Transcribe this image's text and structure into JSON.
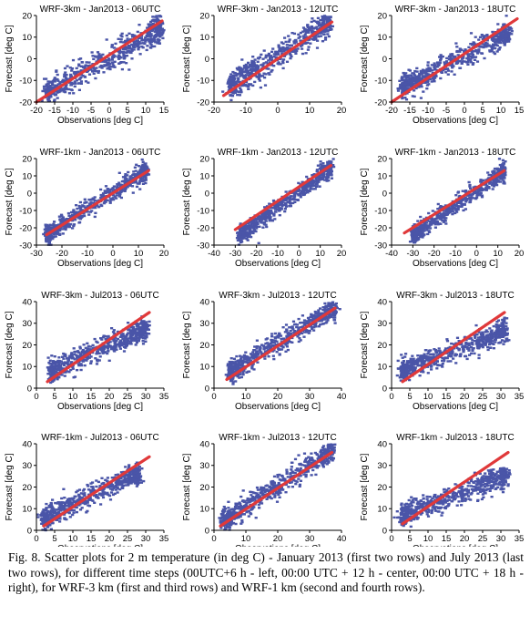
{
  "caption": "Fig. 8. Scatter plots for 2 m temperature (in deg C) - January 2013 (first two rows) and July 2013 (last two rows), for different time steps (00UTC+6 h - left, 00:00 UTC + 12 h - center, 00:00 UTC + 18 h - right), for WRF-3 km (first and third rows) and WRF-1 km (second and fourth rows).",
  "colors": {
    "points": "#4a55a8",
    "fit_line": "#e0393a",
    "axis": "#000000"
  },
  "chart_data": [
    {
      "type": "scatter",
      "title": "WRF-3km - Jan2013 - 06UTC",
      "xlabel": "Observations [deg C]",
      "ylabel": "Forecast [deg C]",
      "xlim": [
        -20,
        15
      ],
      "ylim": [
        -20,
        20
      ],
      "xticks": [
        "-20",
        "-15",
        "-10",
        "-5",
        "0",
        "5",
        "10",
        "15"
      ],
      "yticks": [
        "-20",
        "-10",
        "0",
        "10",
        "20"
      ],
      "cloud": {
        "x_range": [
          -17,
          14
        ],
        "slope": 0.95,
        "intercept": 0.5,
        "spread": 3.0
      },
      "fit_line": {
        "x": [
          -20,
          14.5
        ],
        "y": [
          -20,
          17.5
        ]
      }
    },
    {
      "type": "scatter",
      "title": "WRF-3km - Jan2013 - 12UTC",
      "xlabel": "",
      "ylabel": "Forecast [deg C]",
      "xlim": [
        -20,
        20
      ],
      "ylim": [
        -20,
        20
      ],
      "xticks": [
        "-20",
        "-10",
        "0",
        "10",
        "20"
      ],
      "yticks": [
        "-20",
        "-10",
        "0",
        "10",
        "20"
      ],
      "cloud": {
        "x_range": [
          -15,
          16
        ],
        "slope": 0.95,
        "intercept": 1.5,
        "spread": 3.0
      },
      "fit_line": {
        "x": [
          -17,
          17
        ],
        "y": [
          -17,
          17
        ]
      }
    },
    {
      "type": "scatter",
      "title": "WRF-3km - Jan2013 - 18UTC",
      "xlabel": "Observations [deg C]",
      "ylabel": "Forecast [deg C]",
      "xlim": [
        -20,
        15
      ],
      "ylim": [
        -20,
        20
      ],
      "xticks": [
        "-20",
        "-15",
        "-10",
        "-5",
        "0",
        "5",
        "10",
        "15"
      ],
      "yticks": [
        "-20",
        "-10",
        "0",
        "10",
        "20"
      ],
      "cloud": {
        "x_range": [
          -17,
          12
        ],
        "slope": 0.85,
        "intercept": 1.5,
        "spread": 2.5
      },
      "fit_line": {
        "x": [
          -20,
          14.5
        ],
        "y": [
          -20,
          18.5
        ]
      }
    },
    {
      "type": "scatter",
      "title": "WRF-1km - Jan2013 - 06UTC",
      "xlabel": "Observations [deg C]",
      "ylabel": "Forecast [deg C]",
      "xlim": [
        -30,
        20
      ],
      "ylim": [
        -30,
        20
      ],
      "xticks": [
        "-30",
        "-20",
        "-10",
        "0",
        "10",
        "20"
      ],
      "yticks": [
        "-30",
        "-20",
        "-10",
        "0",
        "10",
        "20"
      ],
      "cloud": {
        "x_range": [
          -26,
          13
        ],
        "slope": 0.95,
        "intercept": 0.5,
        "spread": 2.5
      },
      "fit_line": {
        "x": [
          -26,
          14
        ],
        "y": [
          -24,
          13
        ]
      }
    },
    {
      "type": "scatter",
      "title": "WRF-1km - Jan2013 - 12UTC",
      "xlabel": "Observations [deg C]",
      "ylabel": "Forecast [deg C]",
      "xlim": [
        -40,
        20
      ],
      "ylim": [
        -30,
        20
      ],
      "xticks": [
        "-40",
        "-30",
        "-20",
        "-10",
        "0",
        "10",
        "20"
      ],
      "yticks": [
        "-30",
        "-20",
        "-10",
        "0",
        "10",
        "20"
      ],
      "cloud": {
        "x_range": [
          -28,
          15
        ],
        "slope": 0.92,
        "intercept": 1.0,
        "spread": 2.5
      },
      "fit_line": {
        "x": [
          -30,
          15
        ],
        "y": [
          -21,
          16
        ]
      }
    },
    {
      "type": "scatter",
      "title": "WRF-1km - Jan2013 - 18UTC",
      "xlabel": "Observations [deg C]",
      "ylabel": "Forecast [deg C]",
      "xlim": [
        -40,
        20
      ],
      "ylim": [
        -30,
        20
      ],
      "xticks": [
        "-40",
        "-30",
        "-20",
        "-10",
        "0",
        "10",
        "20"
      ],
      "yticks": [
        "-30",
        "-20",
        "-10",
        "0",
        "10",
        "20"
      ],
      "cloud": {
        "x_range": [
          -30,
          13
        ],
        "slope": 0.85,
        "intercept": 1.5,
        "spread": 2.5
      },
      "fit_line": {
        "x": [
          -34,
          13
        ],
        "y": [
          -23,
          13
        ]
      }
    },
    {
      "type": "scatter",
      "title": "WRF-3km - Jul2013 - 06UTC",
      "xlabel": "Observations [deg C]",
      "ylabel": "Forecast [deg C]",
      "xlim": [
        0,
        35
      ],
      "ylim": [
        0,
        40
      ],
      "xticks": [
        "0",
        "5",
        "10",
        "15",
        "20",
        "25",
        "30",
        "35"
      ],
      "yticks": [
        "0",
        "10",
        "20",
        "30",
        "40"
      ],
      "cloud": {
        "x_range": [
          4,
          30
        ],
        "slope": 0.75,
        "intercept": 5.0,
        "spread": 2.5
      },
      "fit_line": {
        "x": [
          3,
          31
        ],
        "y": [
          3,
          35
        ]
      }
    },
    {
      "type": "scatter",
      "title": "WRF-3km - Jul2013 - 12UTC",
      "xlabel": "Observations [deg C]",
      "ylabel": "Forecast [deg C]",
      "xlim": [
        0,
        40
      ],
      "ylim": [
        0,
        40
      ],
      "xticks": [
        "0",
        "10",
        "20",
        "30",
        "40"
      ],
      "yticks": [
        "0",
        "10",
        "20",
        "30",
        "40"
      ],
      "cloud": {
        "x_range": [
          5,
          38
        ],
        "slope": 0.9,
        "intercept": 3.0,
        "spread": 2.5
      },
      "fit_line": {
        "x": [
          4,
          38
        ],
        "y": [
          4,
          37
        ]
      }
    },
    {
      "type": "scatter",
      "title": "WRF-3km - Jul2013 - 18UTC",
      "xlabel": "Observations [deg C]",
      "ylabel": "Forecast [deg C]",
      "xlim": [
        0,
        35
      ],
      "ylim": [
        0,
        40
      ],
      "xticks": [
        "0",
        "5",
        "10",
        "15",
        "20",
        "25",
        "30",
        "35"
      ],
      "yticks": [
        "0",
        "10",
        "20",
        "30",
        "40"
      ],
      "cloud": {
        "x_range": [
          3,
          31
        ],
        "slope": 0.65,
        "intercept": 6.0,
        "spread": 2.5
      },
      "fit_line": {
        "x": [
          3,
          31
        ],
        "y": [
          3,
          35
        ]
      }
    },
    {
      "type": "scatter",
      "title": "WRF-1km - Jul2013 - 06UTC",
      "xlabel": "Observations [deg C]",
      "ylabel": "Forecast [deg C]",
      "xlim": [
        0,
        35
      ],
      "ylim": [
        0,
        40
      ],
      "xticks": [
        "0",
        "5",
        "10",
        "15",
        "20",
        "25",
        "30",
        "35"
      ],
      "yticks": [
        "0",
        "10",
        "20",
        "30",
        "40"
      ],
      "cloud": {
        "x_range": [
          2,
          28
        ],
        "slope": 0.8,
        "intercept": 4.0,
        "spread": 2.5
      },
      "fit_line": {
        "x": [
          2,
          31
        ],
        "y": [
          2,
          34
        ]
      }
    },
    {
      "type": "scatter",
      "title": "WRF-1km - Jul2013 - 12UTC",
      "xlabel": "Observations [deg C]",
      "ylabel": "Forecast [deg C]",
      "xlim": [
        0,
        40
      ],
      "ylim": [
        0,
        40
      ],
      "xticks": [
        "0",
        "10",
        "20",
        "30",
        "40"
      ],
      "yticks": [
        "0",
        "10",
        "20",
        "30",
        "40"
      ],
      "cloud": {
        "x_range": [
          3,
          37
        ],
        "slope": 0.95,
        "intercept": 1.5,
        "spread": 2.5
      },
      "fit_line": {
        "x": [
          2,
          37
        ],
        "y": [
          2,
          36
        ]
      }
    },
    {
      "type": "scatter",
      "title": "WRF-1km - Jul2013 - 18UTC",
      "xlabel": "Observations [deg C]",
      "ylabel": "Forecast [deg C]",
      "xlim": [
        0,
        35
      ],
      "ylim": [
        0,
        40
      ],
      "xticks": [
        "0",
        "5",
        "10",
        "15",
        "20",
        "25",
        "30",
        "35"
      ],
      "yticks": [
        "0",
        "10",
        "20",
        "30",
        "40"
      ],
      "cloud": {
        "x_range": [
          3,
          31
        ],
        "slope": 0.65,
        "intercept": 5.0,
        "spread": 2.5
      },
      "fit_line": {
        "x": [
          3,
          32
        ],
        "y": [
          3,
          36
        ]
      }
    }
  ]
}
